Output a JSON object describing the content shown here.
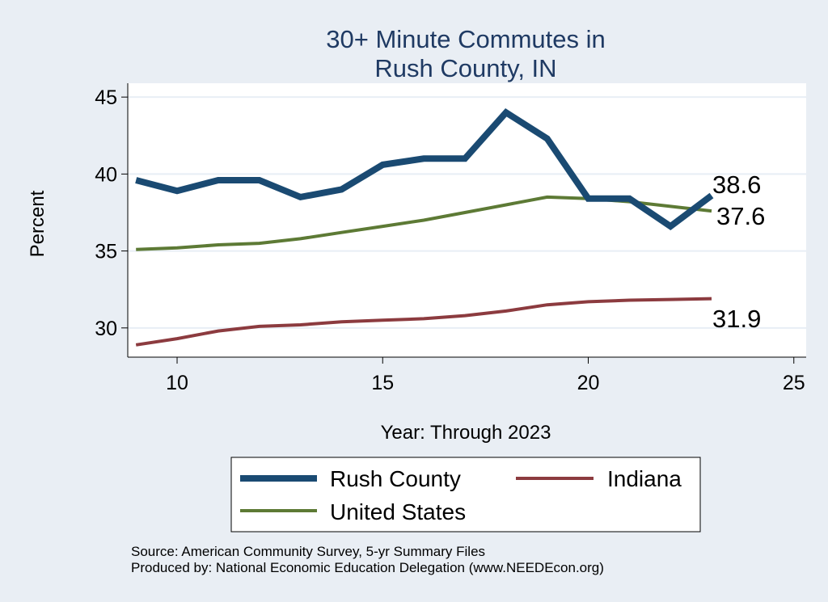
{
  "chart_data": {
    "type": "line",
    "title": [
      "30+ Minute Commutes in",
      "Rush County, IN"
    ],
    "xlabel": "Year: Through 2023",
    "ylabel": "Percent",
    "xlim": [
      8.8,
      25.3
    ],
    "ylim": [
      28.1,
      45.9
    ],
    "xticks": [
      10,
      15,
      20,
      25
    ],
    "yticks": [
      30,
      35,
      40,
      45
    ],
    "grid": true,
    "x": [
      9,
      10,
      11,
      12,
      13,
      14,
      15,
      16,
      17,
      18,
      19,
      20,
      21,
      22,
      23
    ],
    "series": [
      {
        "name": "Rush County",
        "color": "#1a4a72",
        "values": [
          39.6,
          38.9,
          39.6,
          39.6,
          38.5,
          39.0,
          40.6,
          41.0,
          41.0,
          44.0,
          42.3,
          38.4,
          38.4,
          36.6,
          38.6
        ],
        "end_label": "38.6"
      },
      {
        "name": "Indiana",
        "color": "#8c3b3f",
        "values": [
          28.9,
          29.3,
          29.8,
          30.1,
          30.2,
          30.4,
          30.5,
          30.6,
          30.8,
          31.1,
          31.5,
          31.7,
          31.8,
          31.85,
          31.9
        ],
        "end_label": "31.9"
      },
      {
        "name": "United States",
        "color": "#5d7a35",
        "values": [
          35.1,
          35.2,
          35.4,
          35.5,
          35.8,
          36.2,
          36.6,
          37.0,
          37.5,
          38.0,
          38.5,
          38.4,
          38.2,
          37.9,
          37.6
        ],
        "end_label": "37.6"
      }
    ],
    "legend": {
      "placement": "bottom",
      "entries": [
        "Rush County",
        "Indiana",
        "United States"
      ]
    },
    "notes": [
      "Source: American Community Survey, 5-yr Summary Files",
      "Produced by: National Economic Education Delegation (www.NEEDEcon.org)"
    ]
  }
}
